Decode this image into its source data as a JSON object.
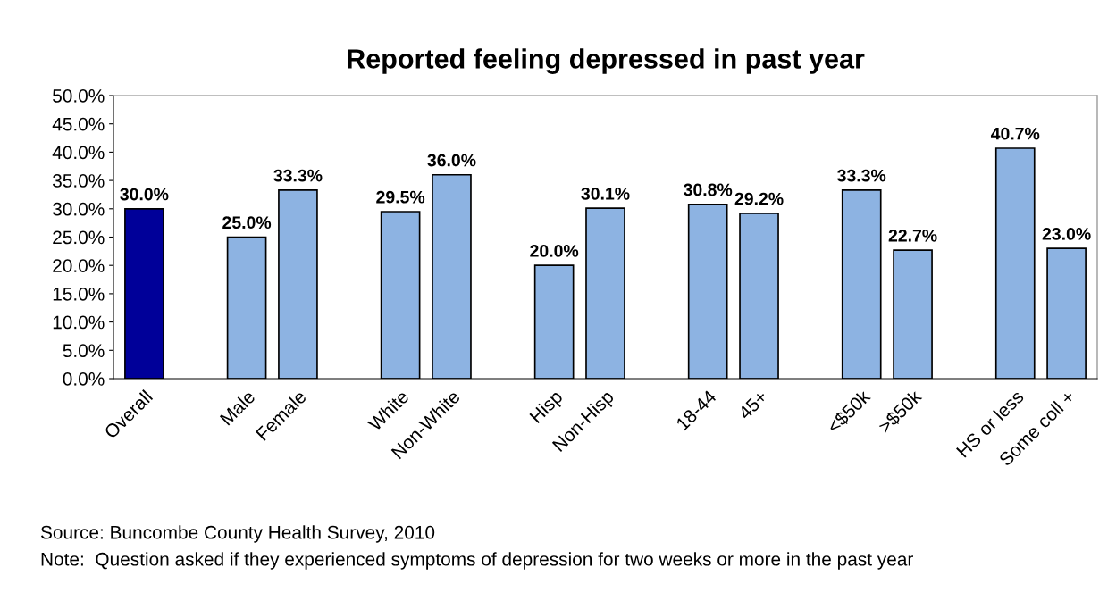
{
  "chart_data": {
    "type": "bar",
    "title": "Reported feeling depressed in past year",
    "categories": [
      "Overall",
      null,
      "Male",
      "Female",
      null,
      "White",
      "Non-White",
      null,
      "Hisp",
      "Non-Hisp",
      null,
      "18-44",
      "45+",
      null,
      "<$50k",
      ">$50k",
      null,
      "HS or less",
      "Some coll +"
    ],
    "values": [
      30.0,
      null,
      25.0,
      33.3,
      null,
      29.5,
      36.0,
      null,
      20.0,
      30.1,
      null,
      30.8,
      29.2,
      null,
      33.3,
      22.7,
      null,
      40.7,
      23.0
    ],
    "value_labels": [
      "30.0%",
      null,
      "25.0%",
      "33.3%",
      null,
      "29.5%",
      "36.0%",
      null,
      "20.0%",
      "30.1%",
      null,
      "30.8%",
      "29.2%",
      null,
      "33.3%",
      "22.7%",
      null,
      "40.7%",
      "23.0%"
    ],
    "colors": [
      "#000099",
      null,
      "#8db3e2",
      "#8db3e2",
      null,
      "#8db3e2",
      "#8db3e2",
      null,
      "#8db3e2",
      "#8db3e2",
      null,
      "#8db3e2",
      "#8db3e2",
      null,
      "#8db3e2",
      "#8db3e2",
      null,
      "#8db3e2",
      "#8db3e2"
    ],
    "ylim": [
      0,
      50
    ],
    "yticks": [
      {
        "value": 0,
        "label": "0.0%"
      },
      {
        "value": 5,
        "label": "5.0%"
      },
      {
        "value": 10,
        "label": "10.0%"
      },
      {
        "value": 15,
        "label": "15.0%"
      },
      {
        "value": 20,
        "label": "20.0%"
      },
      {
        "value": 25,
        "label": "25.0%"
      },
      {
        "value": 30,
        "label": "30.0%"
      },
      {
        "value": 35,
        "label": "35.0%"
      },
      {
        "value": 40,
        "label": "40.0%"
      },
      {
        "value": 45,
        "label": "45.0%"
      },
      {
        "value": 50,
        "label": "50.0%"
      }
    ],
    "grid": false,
    "legend": false,
    "annotations": [
      "Source: Buncombe County Health Survey, 2010",
      "Note:  Question asked if they experienced symptoms of depression for two weeks or more in the past year"
    ]
  }
}
